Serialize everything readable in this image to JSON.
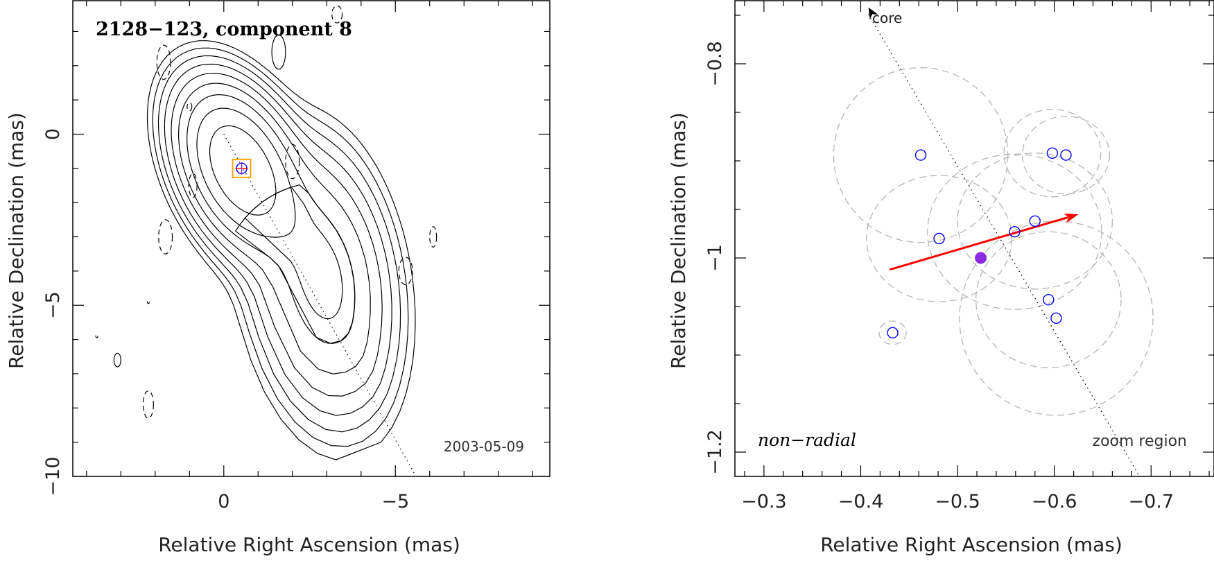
{
  "chart_data": [
    {
      "type": "contour",
      "title": "2128−123, component 8",
      "date": "2003-05-09",
      "xlabel": "Relative Right Ascension (mas)",
      "ylabel": "Relative Declination (mas)",
      "xlim": [
        4.4,
        -9.5
      ],
      "ylim": [
        -10.0,
        3.9
      ],
      "xticks": [
        0,
        -5
      ],
      "xtick_labels": [
        "0",
        "−5"
      ],
      "yticks": [
        0,
        -5,
        -10
      ],
      "ytick_labels": [
        "0",
        "−5",
        "−10"
      ],
      "grid": false,
      "component_position": {
        "x": -0.52,
        "y": -1.0
      },
      "jet_direction_line": {
        "from": [
          0,
          0
        ],
        "to": [
          -5.6,
          -10.0
        ]
      },
      "contour_levels": 12,
      "colors": {
        "contours": "#000000",
        "zoom_box": "#ffa500",
        "markers": "#0000ff"
      }
    },
    {
      "type": "scatter",
      "annotation": "non−radial",
      "zoom_label": "zoom region",
      "core_label": "core",
      "xlabel": "Relative Right Ascension (mas)",
      "ylabel": "Relative Declination (mas)",
      "xlim": [
        -0.27,
        -0.765
      ],
      "ylim": [
        -1.225,
        -0.735
      ],
      "xticks": [
        -0.3,
        -0.4,
        -0.5,
        -0.6,
        -0.7
      ],
      "xtick_labels": [
        "−0.3",
        "−0.4",
        "−0.5",
        "−0.6",
        "−0.7"
      ],
      "yticks": [
        -0.8,
        -1.0,
        -1.2
      ],
      "ytick_labels": [
        "−0.8",
        "−1",
        "−1.2"
      ],
      "grid": false,
      "points": [
        {
          "x": -0.462,
          "y": -0.894
        },
        {
          "x": -0.598,
          "y": -0.892
        },
        {
          "x": -0.612,
          "y": -0.894
        },
        {
          "x": -0.58,
          "y": -0.962
        },
        {
          "x": -0.559,
          "y": -0.973
        },
        {
          "x": -0.481,
          "y": -0.98
        },
        {
          "x": -0.594,
          "y": -1.043
        },
        {
          "x": -0.602,
          "y": -1.062
        },
        {
          "x": -0.433,
          "y": -1.077
        }
      ],
      "mean_position": {
        "x": -0.524,
        "y": -1.0
      },
      "error_ellipses": [
        {
          "x": -0.462,
          "y": -0.894,
          "rx": 0.09,
          "ry": 0.09
        },
        {
          "x": -0.598,
          "y": -0.892,
          "rx": 0.05,
          "ry": 0.045
        },
        {
          "x": -0.612,
          "y": -0.894,
          "rx": 0.045,
          "ry": 0.04
        },
        {
          "x": -0.58,
          "y": -0.962,
          "rx": 0.08,
          "ry": 0.07
        },
        {
          "x": -0.559,
          "y": -0.973,
          "rx": 0.09,
          "ry": 0.08
        },
        {
          "x": -0.481,
          "y": -0.98,
          "rx": 0.075,
          "ry": 0.065
        },
        {
          "x": -0.594,
          "y": -1.043,
          "rx": 0.075,
          "ry": 0.07
        },
        {
          "x": -0.602,
          "y": -1.062,
          "rx": 0.1,
          "ry": 0.1
        },
        {
          "x": -0.433,
          "y": -1.077,
          "rx": 0.014,
          "ry": 0.012
        }
      ],
      "motion_vector": {
        "from": [
          -0.43,
          -1.012
        ],
        "to": [
          -0.625,
          -0.955
        ]
      },
      "jet_direction_line": {
        "from": [
          -0.408,
          -0.742
        ],
        "to": [
          -0.688,
          -1.225
        ]
      },
      "colors": {
        "points": "#0000ff",
        "mean": "#8a2be2",
        "vector": "#ff0000",
        "ellipses": "#b4b4b4"
      }
    }
  ]
}
